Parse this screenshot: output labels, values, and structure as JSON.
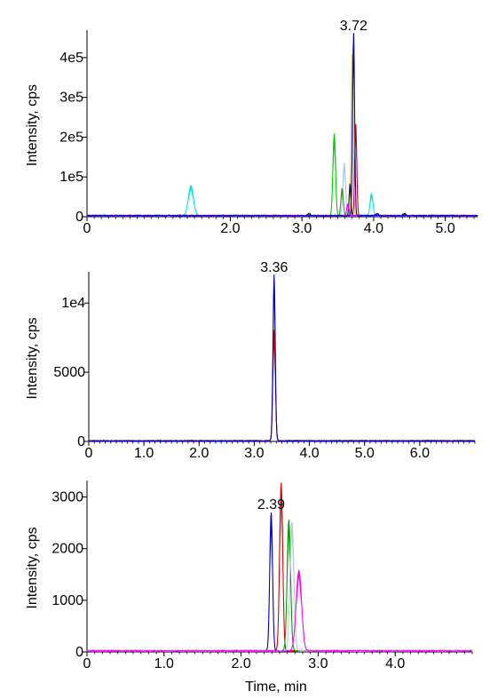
{
  "chart_data": [
    {
      "type": "line",
      "ylabel": "Intensity, cps",
      "xlabel": "",
      "xlim": [
        0,
        5.45
      ],
      "ylim": [
        0,
        460000
      ],
      "x_ticks": [
        {
          "value": 0,
          "label": "0"
        },
        {
          "value": 2.0,
          "label": "2.0"
        },
        {
          "value": 3.0,
          "label": "3.0"
        },
        {
          "value": 4.0,
          "label": "4.0"
        },
        {
          "value": 5.0,
          "label": "5.0"
        }
      ],
      "y_ticks": [
        {
          "value": 0,
          "label": "0"
        },
        {
          "value": 100000,
          "label": "1e5"
        },
        {
          "value": 200000,
          "label": "2e5"
        },
        {
          "value": 300000,
          "label": "3e5"
        },
        {
          "value": 400000,
          "label": "4e5"
        }
      ],
      "baseline": 2500,
      "annotations": [
        {
          "text": "3.72",
          "x": 3.72,
          "y": 460000
        }
      ],
      "series": [
        {
          "color": "#00e5e5",
          "peaks": [
            {
              "x": 1.45,
              "height": 75000,
              "width": 0.035
            },
            {
              "x": 3.97,
              "height": 55000,
              "width": 0.02
            }
          ]
        },
        {
          "color": "#00cc00",
          "peaks": [
            {
              "x": 3.45,
              "height": 205000,
              "width": 0.018
            }
          ]
        },
        {
          "color": "#a9c7e8",
          "peaks": [
            {
              "x": 3.59,
              "height": 132000,
              "width": 0.018
            }
          ]
        },
        {
          "color": "#3d8f3d",
          "peaks": [
            {
              "x": 3.56,
              "height": 70000,
              "width": 0.016
            }
          ]
        },
        {
          "color": "#d4c840",
          "peaks": [
            {
              "x": 3.7,
              "height": 410000,
              "width": 0.014
            }
          ]
        },
        {
          "color": "#e00000",
          "peaks": [
            {
              "x": 3.75,
              "height": 232000,
              "width": 0.014
            }
          ]
        },
        {
          "color": "#202020",
          "peaks": [
            {
              "x": 3.67,
              "height": 82000,
              "width": 0.012
            },
            {
              "x": 3.1,
              "height": 5000,
              "width": 0.02
            },
            {
              "x": 4.43,
              "height": 6000,
              "width": 0.02
            }
          ]
        },
        {
          "color": "#ff00ff",
          "peaks": [
            {
              "x": 3.64,
              "height": 30000,
              "width": 0.015
            }
          ]
        },
        {
          "color": "#0000d0",
          "peaks": [
            {
              "x": 3.72,
              "height": 460000,
              "width": 0.014
            },
            {
              "x": 4.05,
              "height": 5000,
              "width": 0.02
            }
          ]
        }
      ]
    },
    {
      "type": "line",
      "ylabel": "Intensity, cps",
      "xlabel": "",
      "xlim": [
        0,
        7.0
      ],
      "ylim": [
        0,
        12000
      ],
      "x_ticks": [
        {
          "value": 0,
          "label": "0"
        },
        {
          "value": 1.0,
          "label": "1.0"
        },
        {
          "value": 2.0,
          "label": "2.0"
        },
        {
          "value": 3.0,
          "label": "3.0"
        },
        {
          "value": 4.0,
          "label": "4.0"
        },
        {
          "value": 5.0,
          "label": "5.0"
        },
        {
          "value": 6.0,
          "label": "6.0"
        }
      ],
      "y_ticks": [
        {
          "value": 0,
          "label": "0"
        },
        {
          "value": 5000,
          "label": "5000"
        },
        {
          "value": 10000,
          "label": "1e4"
        }
      ],
      "baseline": 50,
      "annotations": [
        {
          "text": "3.36",
          "x": 3.36,
          "y": 12000
        }
      ],
      "series": [
        {
          "color": "#e00000",
          "peaks": [
            {
              "x": 3.36,
              "height": 8000,
              "width": 0.022
            }
          ]
        },
        {
          "color": "#0000d0",
          "peaks": [
            {
              "x": 3.36,
              "height": 12000,
              "width": 0.02
            }
          ]
        }
      ]
    },
    {
      "type": "line",
      "ylabel": "Intensity, cps",
      "xlabel": "Time, min",
      "xlim": [
        0,
        5.0
      ],
      "ylim": [
        0,
        3250
      ],
      "x_ticks": [
        {
          "value": 0,
          "label": "0"
        },
        {
          "value": 1.0,
          "label": "1.0"
        },
        {
          "value": 2.0,
          "label": "2.0"
        },
        {
          "value": 3.0,
          "label": "3.0"
        },
        {
          "value": 4.0,
          "label": "4.0"
        }
      ],
      "y_ticks": [
        {
          "value": 0,
          "label": "0"
        },
        {
          "value": 1000,
          "label": "1000"
        },
        {
          "value": 2000,
          "label": "2000"
        },
        {
          "value": 3000,
          "label": "3000"
        }
      ],
      "baseline": 20,
      "annotations": [
        {
          "text": "2.39",
          "x": 2.39,
          "y": 2700
        }
      ],
      "series": [
        {
          "color": "#0000d0",
          "peaks": [
            {
              "x": 2.39,
              "height": 2690,
              "width": 0.018
            }
          ]
        },
        {
          "color": "#e00000",
          "peaks": [
            {
              "x": 2.52,
              "height": 3250,
              "width": 0.02
            }
          ]
        },
        {
          "color": "#00a000",
          "peaks": [
            {
              "x": 2.62,
              "height": 2530,
              "width": 0.022
            }
          ]
        },
        {
          "color": "#b8c8d8",
          "peaks": [
            {
              "x": 2.66,
              "height": 2500,
              "width": 0.025
            }
          ]
        },
        {
          "color": "#ff00ff",
          "peaks": [
            {
              "x": 2.75,
              "height": 1550,
              "width": 0.035
            }
          ]
        }
      ]
    }
  ]
}
